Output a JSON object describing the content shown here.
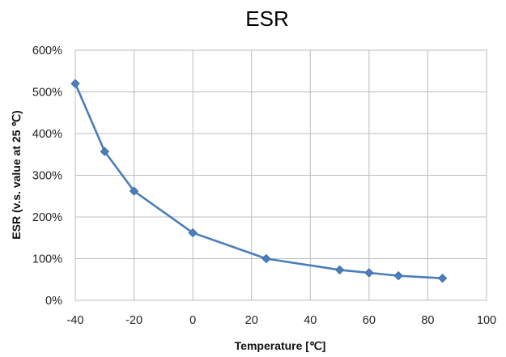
{
  "chart_data": {
    "type": "line",
    "title": "ESR",
    "xlabel": "Temperature [℃]",
    "ylabel": "ESR (v.s. value at 25 ℃)",
    "xlim": [
      -40,
      100
    ],
    "ylim": [
      0,
      600
    ],
    "x_ticks": [
      "-40",
      "-20",
      "0",
      "20",
      "40",
      "60",
      "80",
      "100"
    ],
    "x_tick_values": [
      -40,
      -20,
      0,
      20,
      40,
      60,
      80,
      100
    ],
    "y_ticks": [
      "0%",
      "100%",
      "200%",
      "300%",
      "400%",
      "500%",
      "600%"
    ],
    "y_tick_values": [
      0,
      100,
      200,
      300,
      400,
      500,
      600
    ],
    "grid": true,
    "legend": "none",
    "series": [
      {
        "color": "#4a7ebb",
        "marker": "diamond",
        "x": [
          -40,
          -30,
          -20,
          0,
          25,
          50,
          60,
          70,
          85
        ],
        "y": [
          520,
          357,
          262,
          162,
          100,
          73,
          66,
          59,
          53
        ]
      }
    ]
  }
}
